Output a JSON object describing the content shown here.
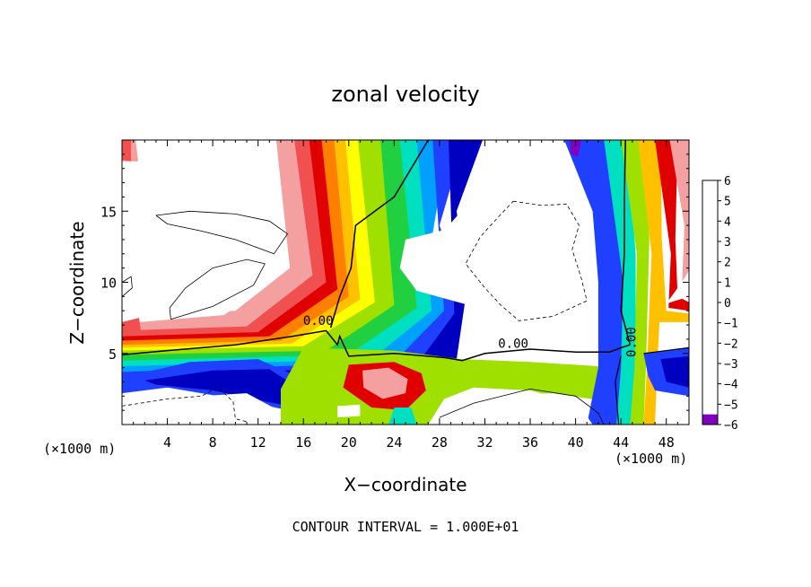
{
  "chart_data": {
    "type": "heatmap",
    "title": "zonal velocity",
    "xlabel": "X−coordinate",
    "ylabel": "Z−coordinate",
    "x_unit": "(×1000 m)",
    "x_unit_right": "(×1000 m)",
    "footer": "CONTOUR INTERVAL = 1.000E+01",
    "xlim": [
      0,
      50
    ],
    "ylim": [
      0,
      20
    ],
    "xticks": [
      4,
      8,
      12,
      16,
      20,
      24,
      28,
      32,
      36,
      40,
      44,
      48
    ],
    "yticks": [
      5,
      10,
      15
    ],
    "contour_labels": [
      {
        "text": "0.00",
        "x": 17.3,
        "y": 7.0
      },
      {
        "text": "0.00",
        "x": 34.5,
        "y": 5.4
      },
      {
        "text": "0.00",
        "x": 45.3,
        "y": 5.8
      }
    ],
    "colorbar": {
      "levels": [
        6,
        5,
        4,
        3,
        2,
        1,
        0,
        -1,
        -2,
        -3,
        -4,
        -5,
        -6
      ],
      "labels": [
        "6",
        "5",
        "4",
        "3",
        "2",
        "1",
        "0",
        "−1",
        "−2",
        "−3",
        "−4",
        "−5",
        "−6"
      ],
      "colors": [
        "#f4a0a0",
        "#f05050",
        "#e00000",
        "#ff8000",
        "#ffc000",
        "#ffff00",
        "#a0e000",
        "#20d040",
        "#00e0c0",
        "#00a0ff",
        "#2040ff",
        "#0000c0",
        "#8000c0"
      ]
    }
  }
}
